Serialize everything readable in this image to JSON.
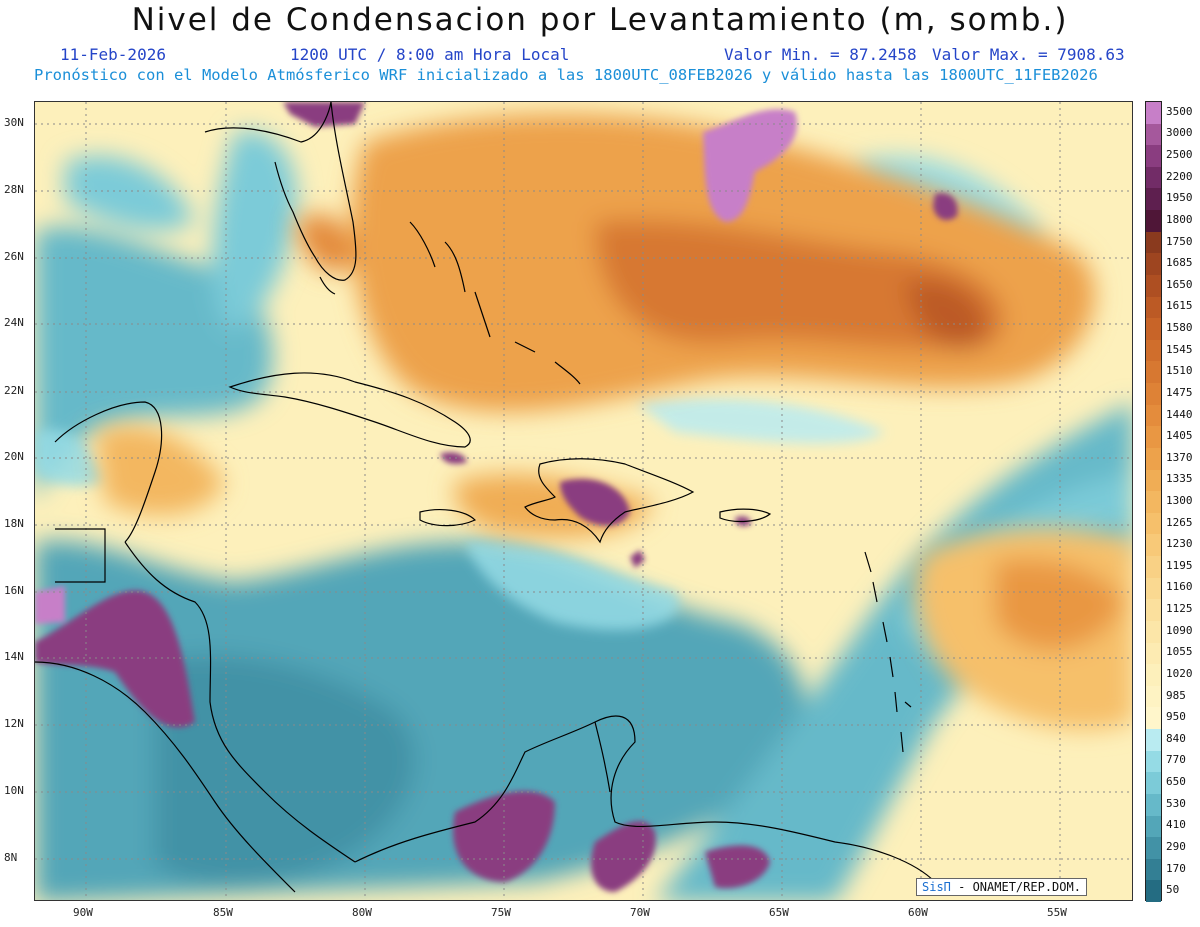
{
  "header": {
    "title": "Nivel de Condensacion por Levantamiento (m, somb.)",
    "date": "11-Feb-2026",
    "time": "1200 UTC / 8:00 am Hora Local",
    "value_min": "Valor Min. = 87.2458",
    "value_max": "Valor Max. = 7908.63",
    "model_line": "Pronóstico con el Modelo Atmósferico WRF inicializado a las 1800UTC_08FEB2026 y válido hasta las  1800UTC_11FEB2026"
  },
  "map": {
    "lat_labels": [
      "30N",
      "28N",
      "26N",
      "24N",
      "22N",
      "20N",
      "18N",
      "16N",
      "14N",
      "12N",
      "10N",
      "8N"
    ],
    "lon_labels": [
      "90W",
      "85W",
      "80W",
      "75W",
      "70W",
      "65W",
      "60W",
      "55W"
    ],
    "land_outline_color": "#000000",
    "gridline_style": "dotted gray"
  },
  "colorbar": {
    "labels": [
      "3500",
      "3000",
      "2500",
      "2200",
      "1950",
      "1800",
      "1750",
      "1685",
      "1650",
      "1615",
      "1580",
      "1545",
      "1510",
      "1475",
      "1440",
      "1405",
      "1370",
      "1335",
      "1300",
      "1265",
      "1230",
      "1195",
      "1160",
      "1125",
      "1090",
      "1055",
      "1020",
      "985",
      "950",
      "840",
      "770",
      "650",
      "530",
      "410",
      "290",
      "170",
      "50"
    ],
    "colors": [
      "#c77fc8",
      "#a5589c",
      "#8a3d80",
      "#722c67",
      "#5e1f4f",
      "#4f1637",
      "#8a3a1e",
      "#9e4520",
      "#ae4f22",
      "#bc5a25",
      "#c86428",
      "#d06e2c",
      "#d77831",
      "#de8236",
      "#e48c3c",
      "#e99743",
      "#eda24b",
      "#f0ad55",
      "#f3b760",
      "#f6c06b",
      "#f8c978",
      "#f9d185",
      "#fad991",
      "#fbe09d",
      "#fce6a8",
      "#fdebb2",
      "#fdf0bb",
      "#fef3c3",
      "#fff6cb",
      "#b9ebf1",
      "#95dbe5",
      "#7ccbd8",
      "#66b9c9",
      "#53a6b8",
      "#4292a6",
      "#337f94",
      "#246c82"
    ]
  },
  "credit": {
    "brand": "SisΠ",
    "text": " - ONAMET/REP.DOM."
  }
}
